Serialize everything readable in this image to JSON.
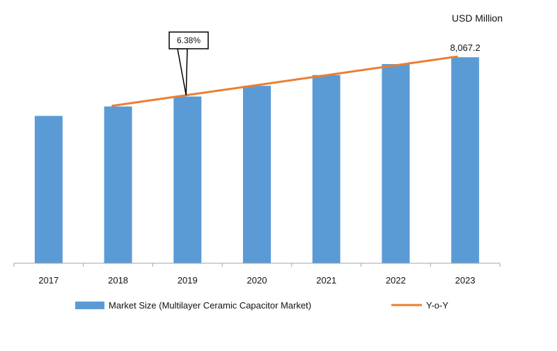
{
  "chart_data": {
    "type": "bar",
    "unit_label": "USD Million",
    "categories": [
      "2017",
      "2018",
      "2019",
      "2020",
      "2021",
      "2022",
      "2023"
    ],
    "series": [
      {
        "name": "Market Size (Multilayer Ceramic Capacitor Market)",
        "type": "bar",
        "values": [
          5770,
          6140,
          6530,
          6950,
          7370,
          7800,
          8067.2
        ]
      },
      {
        "name": "Y-o-Y",
        "type": "line",
        "x_range": [
          "2018",
          "2023"
        ]
      }
    ],
    "data_labels": [
      {
        "category": "2023",
        "text": "8,067.2"
      }
    ],
    "annotations": [
      {
        "category": "2019",
        "text": "6.38%"
      }
    ],
    "ylim": [
      0,
      9600
    ],
    "grid": false,
    "legend_position": "bottom",
    "colors": {
      "bar": "#5b9bd5",
      "line": "#ed7d31",
      "axis": "#a6a6a6"
    }
  }
}
